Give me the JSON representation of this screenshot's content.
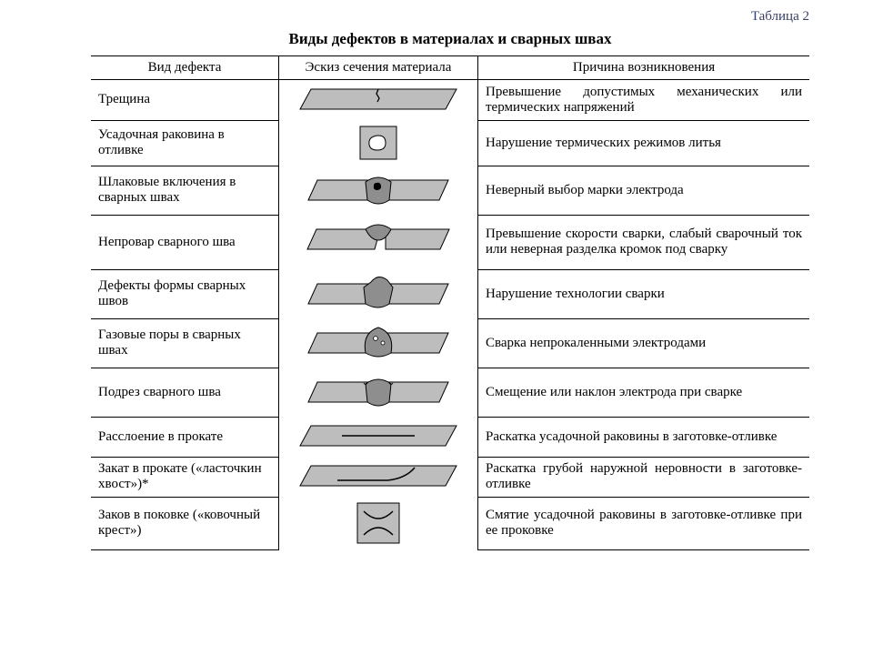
{
  "table_caption": "Таблица 2",
  "title": "Виды дефектов в материалах и сварных швах",
  "columns": [
    "Вид дефекта",
    "Эскиз сечения материала",
    "Причина возникновения"
  ],
  "rows": [
    {
      "name": "Трещина",
      "cause": "Превышение допустимых механиче­ских или термических напряжений",
      "sketch": "crack"
    },
    {
      "name": "Усадочная раковина в отливке",
      "cause": "Нарушение термических режимов литья",
      "sketch": "shrinkage"
    },
    {
      "name": "Шлаковые включе­ния в сварных швах",
      "cause": "Неверный выбор марки электрода",
      "sketch": "slag"
    },
    {
      "name": "Непровар сварного шва",
      "cause": "Превышение скорости сварки, сла­бый сварочный ток или неверная разделка кромок под сварку",
      "sketch": "nofusion"
    },
    {
      "name": "Дефекты формы сварных швов",
      "cause": "Нарушение технологии сварки",
      "sketch": "shape"
    },
    {
      "name": "Газовые поры в сварных швах",
      "cause": "Сварка непрокаленными электродами",
      "sketch": "pores"
    },
    {
      "name": "Подрез сварного шва",
      "cause": "Смещение или наклон электрода при сварке",
      "sketch": "undercut"
    },
    {
      "name": "Расслоение в прокате",
      "cause": "Раскатка усадочной раковины в заго­товке-отливке",
      "sketch": "lamination"
    },
    {
      "name": "Закат в прокате («ласточкин хвост»)*",
      "cause": "Раскатка грубой наружной неровно­сти в заготовке-отливке",
      "sketch": "lap"
    },
    {
      "name": "Заков в поковке («ковочный крест»)",
      "cause": "Смятие усадочной раковины в заго­товке-отливке при ее проковке",
      "sketch": "forge"
    }
  ],
  "style": {
    "light_fill": "#bdbdbd",
    "dark_fill": "#8e8e8e",
    "stroke": "#000000",
    "white": "#ffffff",
    "header_border_width": 1.5,
    "row_border_width": 1
  }
}
